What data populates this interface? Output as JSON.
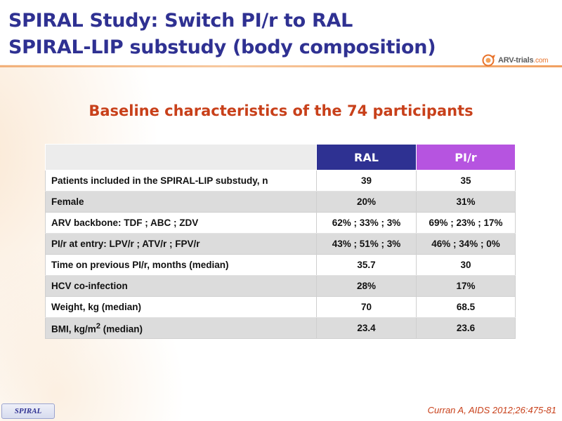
{
  "slide": {
    "title_line1": "SPIRAL Study: Switch PI/r to RAL",
    "title_line2": "SPIRAL-LIP substudy (body composition)",
    "subtitle": "Baseline characteristics of the 74 participants",
    "logo_text": "ARV-trials",
    "logo_domain": ".com",
    "footer_tag": "SPIRAL",
    "citation": "Curran A, AIDS 2012;26:475-81"
  },
  "table": {
    "columns": [
      "",
      "RAL",
      "PI/r"
    ],
    "rows": [
      {
        "label": "Patients included in the SPIRAL-LIP substudy, n",
        "ral": "39",
        "pir": "35"
      },
      {
        "label": "Female",
        "ral": "20%",
        "pir": "31%"
      },
      {
        "label": "ARV backbone: TDF ; ABC ; ZDV",
        "ral": "62% ; 33% ; 3%",
        "pir": "69% ; 23% ; 17%"
      },
      {
        "label": "PI/r at entry: LPV/r ; ATV/r ; FPV/r",
        "ral": "43% ; 51% ; 3%",
        "pir": "46% ; 34% ; 0%"
      },
      {
        "label": "Time on previous PI/r, months (median)",
        "ral": "35.7",
        "pir": "30"
      },
      {
        "label": "HCV co-infection",
        "ral": "28%",
        "pir": "17%"
      },
      {
        "label": "Weight, kg (median)",
        "ral": "70",
        "pir": "68.5"
      },
      {
        "label_pre": "BMI, kg/m",
        "label_sup": "2",
        "label_post": " (median)",
        "ral": "23.4",
        "pir": "23.6"
      }
    ]
  },
  "colors": {
    "title": "#2f3192",
    "accent": "#c8401a",
    "ral_header": "#2e3192",
    "pir_header": "#b654e0",
    "row_alt": "#dcdcdc"
  }
}
